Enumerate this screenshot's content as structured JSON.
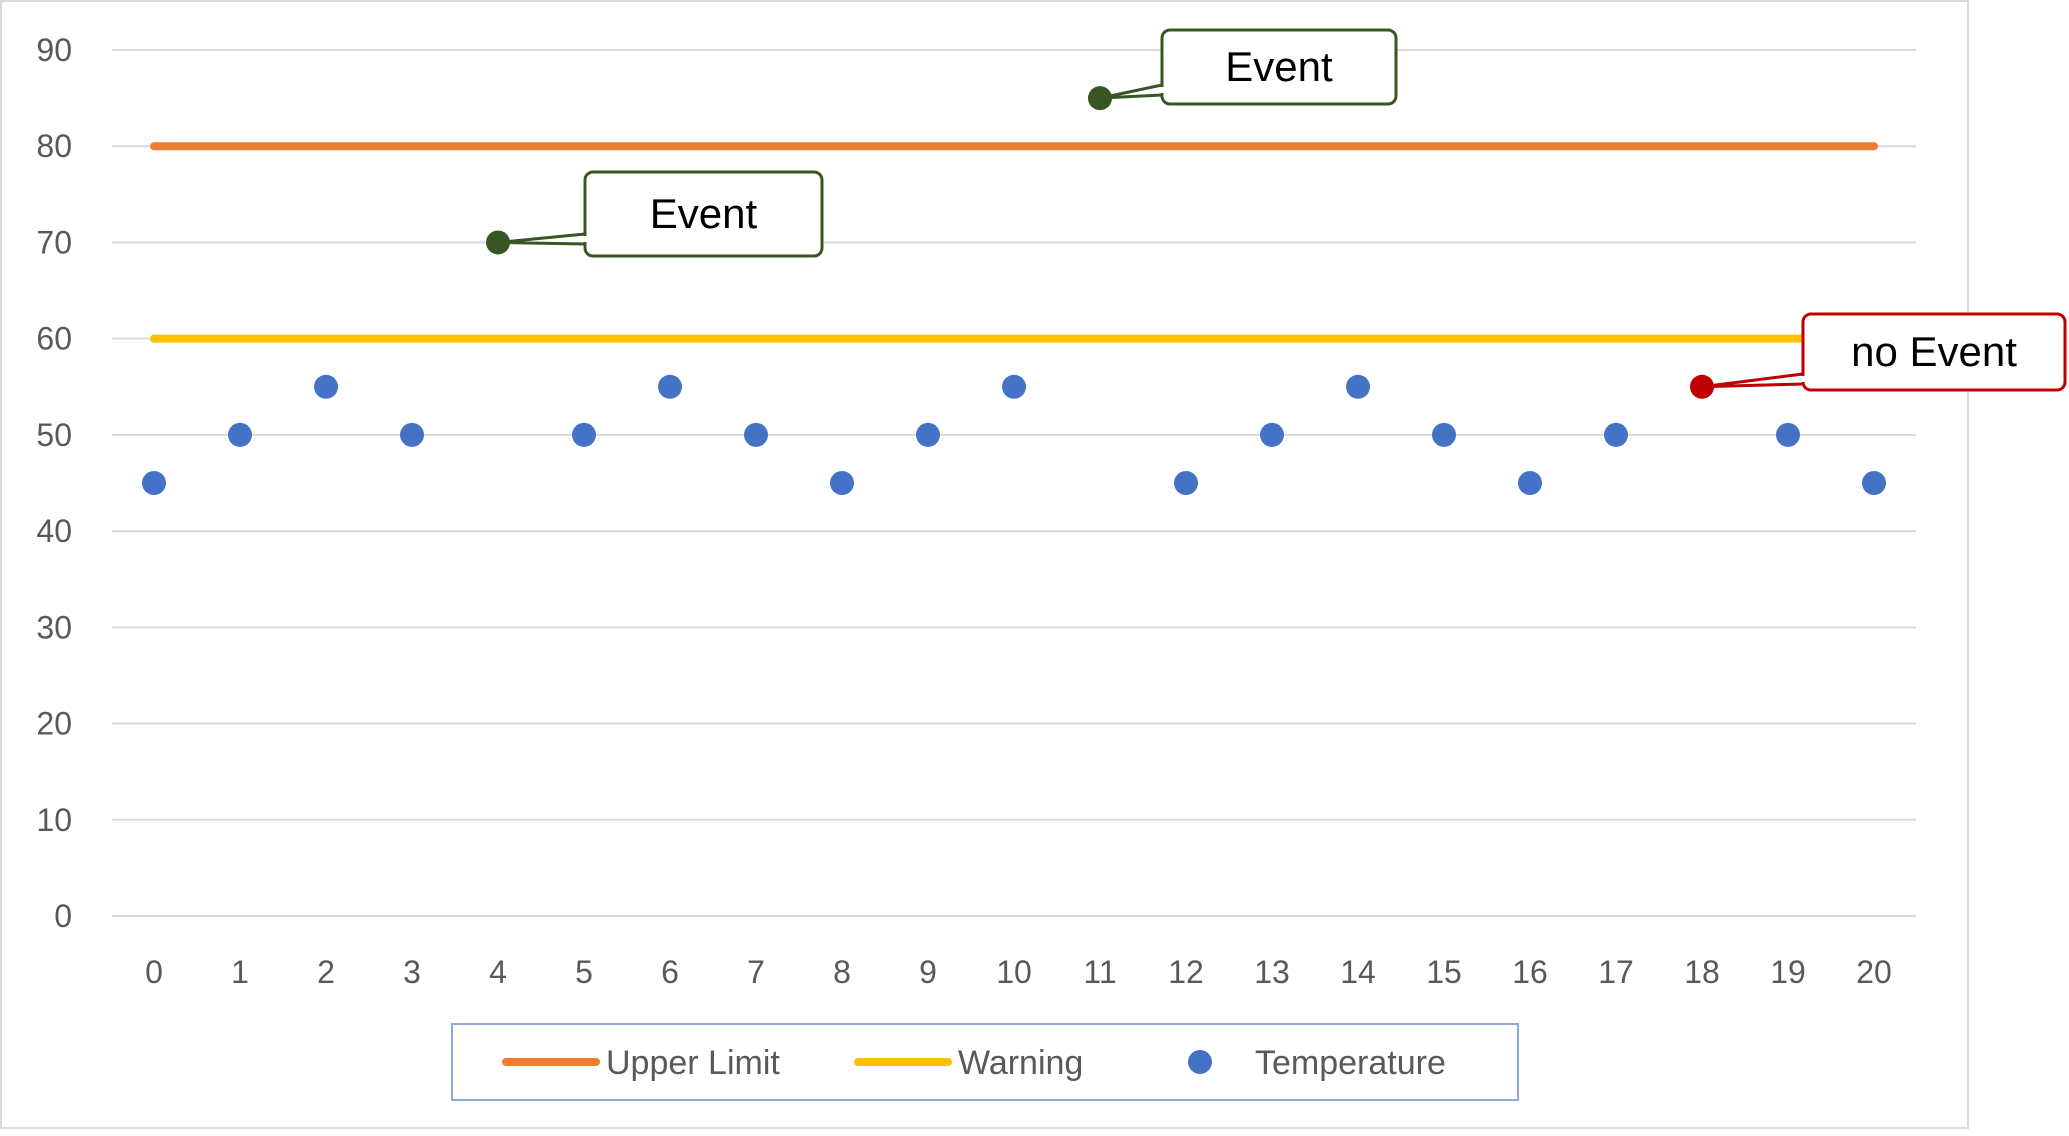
{
  "chart_data": {
    "type": "scatter",
    "title": "",
    "xlabel": "",
    "ylabel": "",
    "xlim": [
      0,
      20
    ],
    "ylim": [
      0,
      90
    ],
    "x_ticks": [
      0,
      1,
      2,
      3,
      4,
      5,
      6,
      7,
      8,
      9,
      10,
      11,
      12,
      13,
      14,
      15,
      16,
      17,
      18,
      19,
      20
    ],
    "y_ticks": [
      0,
      10,
      20,
      30,
      40,
      50,
      60,
      70,
      80,
      90
    ],
    "grid": "horizontal",
    "legend_position": "bottom",
    "series": [
      {
        "name": "Upper Limit",
        "kind": "line",
        "color": "#ED7D31",
        "x": [
          0,
          20
        ],
        "y": [
          80,
          80
        ]
      },
      {
        "name": "Warning",
        "kind": "line",
        "color": "#FFC000",
        "x": [
          0,
          20
        ],
        "y": [
          60,
          60
        ]
      },
      {
        "name": "Temperature",
        "kind": "scatter",
        "color": "#4472C4",
        "x": [
          0,
          1,
          2,
          3,
          4,
          5,
          6,
          7,
          8,
          9,
          10,
          11,
          12,
          13,
          14,
          15,
          16,
          17,
          18,
          19,
          20
        ],
        "y": [
          45,
          50,
          55,
          50,
          70,
          50,
          55,
          50,
          45,
          50,
          55,
          85,
          45,
          50,
          55,
          50,
          45,
          50,
          55,
          50,
          45
        ],
        "point_colors": [
          "#4472C4",
          "#4472C4",
          "#4472C4",
          "#4472C4",
          "#375623",
          "#4472C4",
          "#4472C4",
          "#4472C4",
          "#4472C4",
          "#4472C4",
          "#4472C4",
          "#375623",
          "#4472C4",
          "#4472C4",
          "#4472C4",
          "#4472C4",
          "#4472C4",
          "#4472C4",
          "#C00000",
          "#4472C4",
          "#4472C4"
        ]
      }
    ],
    "annotations": [
      {
        "label": "Event",
        "x": 11,
        "y": 85,
        "color": "#375623"
      },
      {
        "label": "Event",
        "x": 4,
        "y": 70,
        "color": "#375623"
      },
      {
        "label": "no Event",
        "x": 18,
        "y": 55,
        "color": "#C00000"
      }
    ]
  }
}
